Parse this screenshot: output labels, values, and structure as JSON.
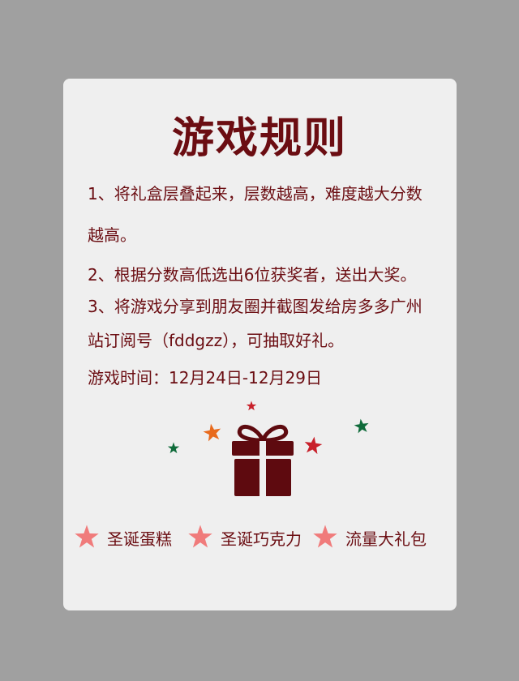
{
  "title": "游戏规则",
  "rules": {
    "rule1": "1、将礼盒层叠起来，层数越高，难度越大分数越高。",
    "rule2": "2、根据分数高低选出6位获奖者，送出大奖。",
    "rule3": "3、将游戏分享到朋友圈并截图发给房多多广州站订阅号（fddgzz），可抽取好礼。",
    "time": "游戏时间：12月24日-12月29日"
  },
  "prizes": [
    {
      "label": "圣诞蛋糕",
      "icon": "pink-star-icon"
    },
    {
      "label": "圣诞巧克力",
      "icon": "pink-star-icon"
    },
    {
      "label": "流量大礼包",
      "icon": "pink-star-icon"
    }
  ],
  "colors": {
    "background": "#a0a0a0",
    "card": "#efefef",
    "text": "#6b0d12",
    "gift": "#5e0a0f",
    "star_red": "#c8202a",
    "star_orange": "#e86a1c",
    "star_green": "#0f6b3a",
    "star_pink": "#f07b7b"
  }
}
